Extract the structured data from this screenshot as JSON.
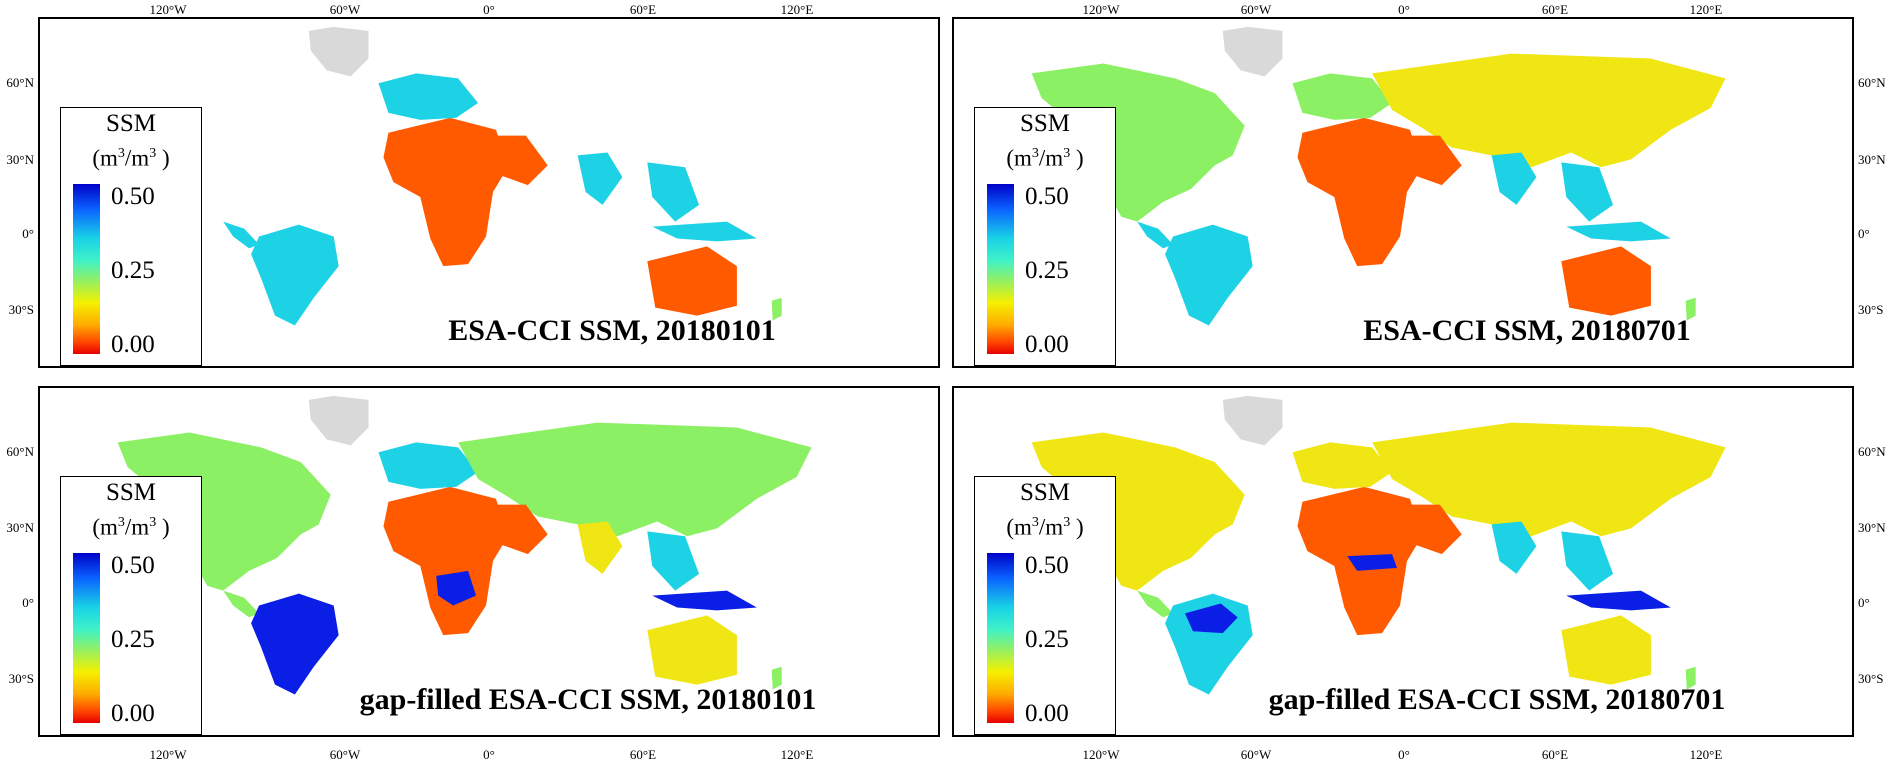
{
  "axes": {
    "lon_ticks": [
      "120°W",
      "60°W",
      "0°",
      "60°E",
      "120°E"
    ],
    "lat_ticks": [
      "60°N",
      "30°N",
      "0°",
      "30°S"
    ]
  },
  "legend": {
    "title": "SSM",
    "unit_base": "(m",
    "unit_exp1": "3",
    "unit_mid": "/m",
    "unit_exp2": "3",
    "unit_end": " )",
    "max_label": "0.50",
    "mid_label": "0.25",
    "min_label": "0.00"
  },
  "panels": [
    {
      "title": "ESA-CCI SSM, 20180101"
    },
    {
      "title": "ESA-CCI SSM, 20180701"
    },
    {
      "title": "gap-filled ESA-CCI SSM, 20180101"
    },
    {
      "title": "gap-filled ESA-CCI SSM, 20180701"
    }
  ],
  "colors": {
    "wet": "#0a1ee6",
    "mid": "#1ed2e6",
    "moist": "#8cf064",
    "dry": "#f0e614",
    "very_dry": "#ff5a00",
    "ice": "#d9d9d9"
  }
}
